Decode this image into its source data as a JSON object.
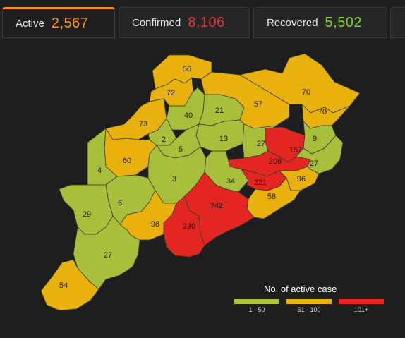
{
  "tabs": {
    "active": {
      "label": "Active",
      "value": "2,567",
      "color": "#f7941d"
    },
    "confirmed": {
      "label": "Confirmed",
      "value": "8,106",
      "color": "#e0343f"
    },
    "recovered": {
      "label": "Recovered",
      "value": "5,502",
      "color": "#7ed321"
    }
  },
  "map": {
    "colors": {
      "low": "#a8bf3c",
      "mid": "#e8b10e",
      "high": "#e32622"
    },
    "districts": [
      {
        "label": "56",
        "band": "mid"
      },
      {
        "label": "72",
        "band": "mid"
      },
      {
        "label": "70",
        "band": "mid"
      },
      {
        "label": "70",
        "band": "mid"
      },
      {
        "label": "40",
        "band": "low"
      },
      {
        "label": "21",
        "band": "low"
      },
      {
        "label": "57",
        "band": "mid"
      },
      {
        "label": "73",
        "band": "mid"
      },
      {
        "label": "13",
        "band": "low"
      },
      {
        "label": "2",
        "band": "low"
      },
      {
        "label": "5",
        "band": "low"
      },
      {
        "label": "27",
        "band": "low"
      },
      {
        "label": "157",
        "band": "high"
      },
      {
        "label": "9",
        "band": "low"
      },
      {
        "label": "60",
        "band": "mid"
      },
      {
        "label": "4",
        "band": "low"
      },
      {
        "label": "206",
        "band": "high"
      },
      {
        "label": "27",
        "band": "low"
      },
      {
        "label": "3",
        "band": "low"
      },
      {
        "label": "34",
        "band": "low"
      },
      {
        "label": "221",
        "band": "high"
      },
      {
        "label": "96",
        "band": "mid"
      },
      {
        "label": "58",
        "band": "mid"
      },
      {
        "label": "6",
        "band": "low"
      },
      {
        "label": "742",
        "band": "high"
      },
      {
        "label": "29",
        "band": "low"
      },
      {
        "label": "98",
        "band": "mid"
      },
      {
        "label": "230",
        "band": "high"
      },
      {
        "label": "27",
        "band": "low"
      },
      {
        "label": "54",
        "band": "mid"
      }
    ]
  },
  "legend": {
    "title": "No. of active case",
    "items": [
      {
        "label": "1 - 50",
        "color": "#a8bf3c"
      },
      {
        "label": "51 - 100",
        "color": "#e8b10e"
      },
      {
        "label": "101+",
        "color": "#e32622"
      }
    ]
  }
}
